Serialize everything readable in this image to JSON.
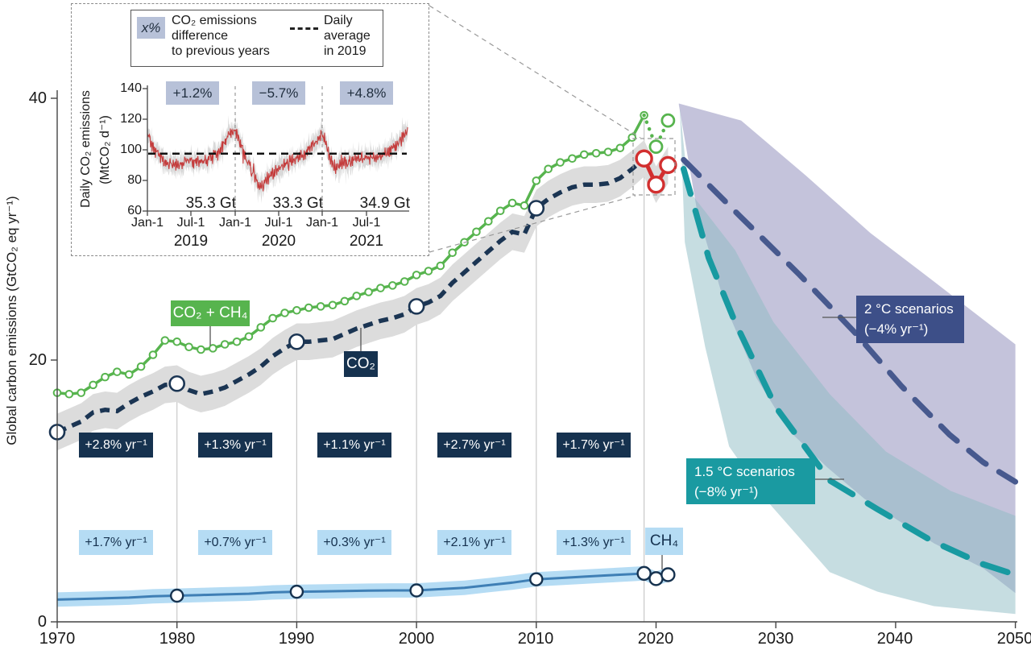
{
  "figure": {
    "y_axis_label": "Global carbon emissions (GtCO₂ eq yr⁻¹)",
    "y_ticks": [
      "0",
      "20",
      "40"
    ],
    "x_ticks": [
      "1970",
      "1980",
      "1990",
      "2000",
      "2010",
      "2020",
      "2030",
      "2040",
      "2050"
    ]
  },
  "labels": {
    "co2_ch4": "CO₂ + CH₄",
    "co2": "CO₂",
    "ch4": "CH₄",
    "scenario_2c_line1": "2 °C scenarios",
    "scenario_2c_line2": "(−4% yr⁻¹)",
    "scenario_15c_line1": "1.5 °C scenarios",
    "scenario_15c_line2": "(−8% yr⁻¹)"
  },
  "growth_rates": {
    "co2": [
      "+2.8% yr⁻¹",
      "+1.3% yr⁻¹",
      "+1.1% yr⁻¹",
      "+2.7% yr⁻¹",
      "+1.7% yr⁻¹"
    ],
    "ch4": [
      "+1.7% yr⁻¹",
      "+0.7% yr⁻¹",
      "+0.3% yr⁻¹",
      "+2.1% yr⁻¹",
      "+1.3% yr⁻¹"
    ]
  },
  "inset": {
    "legend": {
      "symbol": "x%",
      "text1": "CO₂ emissions\ndifference\nto previous years",
      "text2": "Daily\naverage\nin 2019"
    },
    "y_label_line1": "Daily CO₂ emissions",
    "y_label_line2": "(MtCO₂ d⁻¹)",
    "y_ticks": [
      "140",
      "120",
      "100",
      "80",
      "60"
    ],
    "x_ticks": [
      "Jan-1",
      "Jul-1",
      "Jan-1",
      "Jul-1",
      "Jan-1",
      "Jul-1"
    ],
    "years": [
      "2019",
      "2020",
      "2021"
    ],
    "pct": [
      "+1.2%",
      "−5.7%",
      "+4.8%"
    ],
    "totals": [
      "35.3 Gt",
      "33.3 Gt",
      "34.9 Gt"
    ]
  },
  "colors": {
    "green": "#57b44e",
    "navy": "#1b3553",
    "navy_box": "#16324f",
    "gray_band": "#dcdcdc",
    "blue": "#3f7fb5",
    "blue_band": "#b5dcf4",
    "red": "#d22f2f",
    "teal": "#189aa1",
    "navy_scenario": "#47598e",
    "purple_fill": "#8d8cba",
    "teal_fill": "#8ebcc3",
    "box_2c": "#3d4f88",
    "box_15c": "#1a9aa1",
    "pct_chip": "#b7c1d8",
    "grid": "#c9c9c9",
    "axis": "#444444",
    "inset_red": "#c43c3c"
  },
  "chart_data": {
    "type": "line",
    "ylabel": "Global carbon emissions (GtCO₂ eq yr⁻¹)",
    "xlim": [
      1970,
      2050
    ],
    "ylim": [
      0,
      43
    ],
    "y_ticks": [
      0,
      20,
      40
    ],
    "x_ticks": [
      1970,
      1980,
      1990,
      2000,
      2010,
      2020,
      2030,
      2040,
      2050
    ],
    "series": {
      "co2ch4": [
        [
          1970,
          17.5
        ],
        [
          1971,
          17.4
        ],
        [
          1972,
          17.5
        ],
        [
          1973,
          18.1
        ],
        [
          1974,
          18.7
        ],
        [
          1975,
          19.1
        ],
        [
          1976,
          18.9
        ],
        [
          1977,
          19.5
        ],
        [
          1978,
          20.4
        ],
        [
          1979,
          21.5
        ],
        [
          1980,
          21.4
        ],
        [
          1981,
          21.0
        ],
        [
          1982,
          20.8
        ],
        [
          1983,
          20.9
        ],
        [
          1984,
          21.2
        ],
        [
          1985,
          21.4
        ],
        [
          1986,
          21.8
        ],
        [
          1987,
          22.5
        ],
        [
          1988,
          23.2
        ],
        [
          1989,
          23.6
        ],
        [
          1990,
          23.8
        ],
        [
          1991,
          24.0
        ],
        [
          1992,
          24.1
        ],
        [
          1993,
          24.2
        ],
        [
          1994,
          24.5
        ],
        [
          1995,
          24.9
        ],
        [
          1996,
          25.2
        ],
        [
          1997,
          25.5
        ],
        [
          1998,
          25.7
        ],
        [
          1999,
          26.0
        ],
        [
          2000,
          26.5
        ],
        [
          2001,
          26.8
        ],
        [
          2002,
          27.2
        ],
        [
          2003,
          28.2
        ],
        [
          2004,
          29.0
        ],
        [
          2005,
          29.8
        ],
        [
          2006,
          30.6
        ],
        [
          2007,
          31.4
        ],
        [
          2008,
          32.0
        ],
        [
          2009,
          31.8
        ],
        [
          2010,
          33.7
        ],
        [
          2011,
          34.6
        ],
        [
          2012,
          35.1
        ],
        [
          2013,
          35.4
        ],
        [
          2014,
          35.7
        ],
        [
          2015,
          35.8
        ],
        [
          2016,
          35.9
        ],
        [
          2017,
          36.2
        ],
        [
          2018,
          37.0
        ],
        [
          2019,
          38.7
        ]
      ],
      "co2": [
        [
          1970,
          14.5
        ],
        [
          1971,
          14.9
        ],
        [
          1972,
          15.3
        ],
        [
          1973,
          16.0
        ],
        [
          1974,
          16.2
        ],
        [
          1975,
          16.1
        ],
        [
          1976,
          16.7
        ],
        [
          1977,
          17.2
        ],
        [
          1978,
          17.6
        ],
        [
          1979,
          18.1
        ],
        [
          1980,
          18.2
        ],
        [
          1981,
          17.7
        ],
        [
          1982,
          17.4
        ],
        [
          1983,
          17.6
        ],
        [
          1984,
          17.9
        ],
        [
          1985,
          18.4
        ],
        [
          1986,
          18.9
        ],
        [
          1987,
          19.5
        ],
        [
          1988,
          20.3
        ],
        [
          1989,
          20.9
        ],
        [
          1990,
          21.4
        ],
        [
          1991,
          21.4
        ],
        [
          1992,
          21.5
        ],
        [
          1993,
          21.6
        ],
        [
          1994,
          22.0
        ],
        [
          1995,
          22.4
        ],
        [
          1996,
          22.7
        ],
        [
          1997,
          23.0
        ],
        [
          1998,
          23.2
        ],
        [
          1999,
          23.5
        ],
        [
          2000,
          24.1
        ],
        [
          2001,
          24.4
        ],
        [
          2002,
          24.9
        ],
        [
          2003,
          25.9
        ],
        [
          2004,
          26.7
        ],
        [
          2005,
          27.5
        ],
        [
          2006,
          28.3
        ],
        [
          2007,
          29.1
        ],
        [
          2008,
          29.8
        ],
        [
          2009,
          29.6
        ],
        [
          2010,
          31.6
        ],
        [
          2011,
          32.3
        ],
        [
          2012,
          32.8
        ],
        [
          2013,
          33.2
        ],
        [
          2014,
          33.4
        ],
        [
          2015,
          33.4
        ],
        [
          2016,
          33.5
        ],
        [
          2017,
          33.9
        ],
        [
          2018,
          34.6
        ],
        [
          2019,
          35.4
        ]
      ],
      "ch4": [
        [
          1970,
          1.7
        ],
        [
          1972,
          1.75
        ],
        [
          1974,
          1.8
        ],
        [
          1976,
          1.85
        ],
        [
          1978,
          1.95
        ],
        [
          1980,
          2.0
        ],
        [
          1982,
          2.05
        ],
        [
          1984,
          2.1
        ],
        [
          1986,
          2.15
        ],
        [
          1988,
          2.25
        ],
        [
          1990,
          2.3
        ],
        [
          1992,
          2.32
        ],
        [
          1994,
          2.35
        ],
        [
          1996,
          2.38
        ],
        [
          1998,
          2.4
        ],
        [
          2000,
          2.4
        ],
        [
          2002,
          2.5
        ],
        [
          2004,
          2.6
        ],
        [
          2006,
          2.8
        ],
        [
          2008,
          3.0
        ],
        [
          2010,
          3.25
        ],
        [
          2012,
          3.35
        ],
        [
          2014,
          3.45
        ],
        [
          2016,
          3.55
        ],
        [
          2018,
          3.65
        ],
        [
          2019,
          3.7
        ],
        [
          2020,
          3.3
        ],
        [
          2021,
          3.6
        ]
      ],
      "co2_dip_red": [
        [
          2019,
          35.4
        ],
        [
          2020,
          33.4
        ],
        [
          2021,
          34.9
        ]
      ],
      "co2ch4_dip_dotted": [
        [
          2019,
          38.7
        ],
        [
          2020,
          36.3
        ],
        [
          2021,
          38.3
        ]
      ],
      "scenario_2c": [
        [
          2022.3,
          35.3
        ],
        [
          2027,
          31.0
        ],
        [
          2032,
          26.5
        ],
        [
          2036.5,
          22.2
        ],
        [
          2040.5,
          18.0
        ],
        [
          2044.5,
          14.3
        ],
        [
          2047.3,
          12.2
        ],
        [
          2050,
          10.7
        ]
      ],
      "scenario_15c": [
        [
          2022.3,
          34.6
        ],
        [
          2024.4,
          27.8
        ],
        [
          2026.6,
          22.9
        ],
        [
          2030,
          16.4
        ],
        [
          2034.5,
          10.8
        ],
        [
          2038.5,
          8.6
        ],
        [
          2043,
          6.2
        ],
        [
          2047.3,
          4.4
        ],
        [
          2050,
          3.6
        ]
      ]
    },
    "bands": {
      "co2_uncertainty_halfwidth": 1.4,
      "ch4_uncertainty_halfwidth": 0.55,
      "band_2c_top": [
        [
          2021.9,
          39.6
        ],
        [
          2027.1,
          38.3
        ],
        [
          2032.5,
          34.1
        ],
        [
          2037.9,
          29.7
        ],
        [
          2043.2,
          26.0
        ],
        [
          2050,
          21.2
        ]
      ],
      "band_2c_bottom": [
        [
          2021.9,
          39.5
        ],
        [
          2023.4,
          31.5
        ],
        [
          2025.8,
          24.1
        ],
        [
          2028.4,
          18.6
        ],
        [
          2031.1,
          14.6
        ],
        [
          2034.3,
          11.8
        ],
        [
          2037.4,
          9.4
        ],
        [
          2043.2,
          6.0
        ],
        [
          2047.3,
          4.1
        ],
        [
          2050,
          2.2
        ]
      ],
      "band_15c_top": [
        [
          2022,
          39.2
        ],
        [
          2022.7,
          33.0
        ],
        [
          2026.6,
          28.4
        ],
        [
          2029.8,
          22.9
        ],
        [
          2034.5,
          17.4
        ],
        [
          2039.2,
          13.0
        ],
        [
          2044.6,
          10.0
        ],
        [
          2050,
          8.1
        ]
      ],
      "band_15c_bottom": [
        [
          2022,
          39.0
        ],
        [
          2022.4,
          29.0
        ],
        [
          2024.1,
          21.0
        ],
        [
          2026.1,
          13.4
        ],
        [
          2029.3,
          9.2
        ],
        [
          2034.5,
          3.8
        ],
        [
          2038.5,
          2.3
        ],
        [
          2043.2,
          1.2
        ],
        [
          2050,
          0.6
        ]
      ]
    },
    "markers": {
      "co2_decades": [
        1970,
        1980,
        1990,
        2000,
        2010
      ],
      "ch4_decades": [
        1980,
        1990,
        2000,
        2010
      ],
      "ch4_recent": [
        2019,
        2020,
        2021
      ]
    },
    "gridlines_top_value": [
      [
        1980,
        18.2
      ],
      [
        1990,
        21.4
      ],
      [
        2000,
        24.1
      ],
      [
        2010,
        31.6
      ],
      [
        2019,
        38.7
      ]
    ],
    "inset_daily": {
      "type": "line",
      "ylim": [
        60,
        140
      ],
      "daily_average_2019": 97.5,
      "annual_totals_gt": [
        35.3,
        33.3,
        34.9
      ],
      "pct_change": [
        1.2,
        -5.7,
        4.8
      ],
      "keypoints": [
        [
          0,
          110
        ],
        [
          0.08,
          100
        ],
        [
          0.2,
          92
        ],
        [
          0.35,
          90
        ],
        [
          0.5,
          93
        ],
        [
          0.65,
          92
        ],
        [
          0.8,
          97
        ],
        [
          0.92,
          108
        ],
        [
          1.0,
          113
        ],
        [
          1.1,
          98
        ],
        [
          1.2,
          85
        ],
        [
          1.28,
          74
        ],
        [
          1.35,
          80
        ],
        [
          1.5,
          88
        ],
        [
          1.65,
          93
        ],
        [
          1.8,
          97
        ],
        [
          1.92,
          106
        ],
        [
          2.0,
          111
        ],
        [
          2.08,
          95
        ],
        [
          2.15,
          88
        ],
        [
          2.3,
          93
        ],
        [
          2.5,
          95
        ],
        [
          2.65,
          96
        ],
        [
          2.8,
          100
        ],
        [
          2.9,
          107
        ],
        [
          2.97,
          111
        ]
      ]
    }
  }
}
